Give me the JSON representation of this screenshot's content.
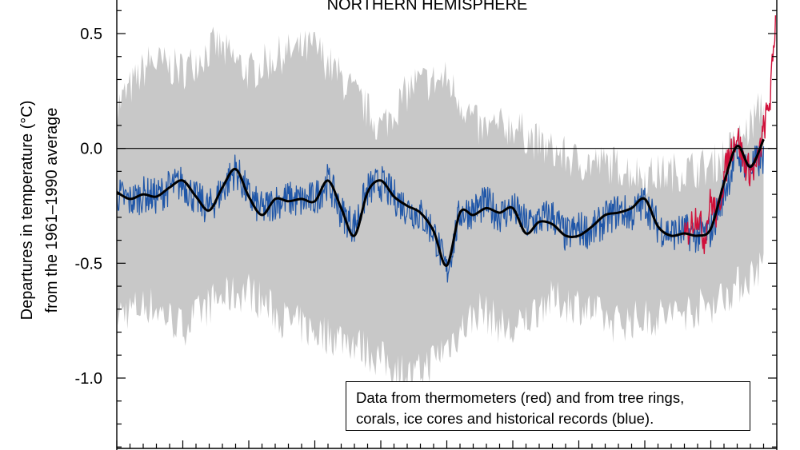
{
  "chart_data": {
    "type": "line",
    "title": "NORTHERN HEMISPHERE",
    "ylabel_line1": "Departures in temperature (°C)",
    "ylabel_line2": "from the 1961–1990 average",
    "xlabel": "",
    "ylim": [
      -1.3,
      0.65
    ],
    "xlim": [
      1000,
      2000
    ],
    "yticks": [
      0.5,
      0.0,
      -0.5,
      -1.0
    ],
    "ytick_labels": [
      "0.5",
      "0.0",
      "-0.5",
      "-1.0"
    ],
    "zero_line": true,
    "series": [
      {
        "role": "uncertainty_band",
        "color": "#c8c8c8",
        "x": [
          1000,
          1050,
          1100,
          1150,
          1200,
          1250,
          1300,
          1350,
          1400,
          1450,
          1500,
          1550,
          1600,
          1650,
          1700,
          1750,
          1800,
          1850,
          1900,
          1950,
          1980
        ],
        "upper": [
          0.18,
          0.38,
          0.34,
          0.45,
          0.33,
          0.41,
          0.44,
          0.27,
          0.09,
          0.28,
          0.3,
          0.08,
          0.1,
          0.0,
          -0.06,
          -0.07,
          -0.12,
          -0.1,
          -0.08,
          0.05,
          0.2
        ],
        "lower": [
          -0.72,
          -0.68,
          -0.78,
          -0.66,
          -0.62,
          -0.74,
          -0.8,
          -0.83,
          -0.92,
          -1.0,
          -0.86,
          -0.7,
          -0.81,
          -0.66,
          -0.68,
          -0.76,
          -0.74,
          -0.72,
          -0.68,
          -0.58,
          -0.5
        ]
      },
      {
        "role": "proxy_reconstruction",
        "color": "#1f56a8",
        "x": [
          1000,
          1020,
          1040,
          1060,
          1080,
          1100,
          1120,
          1140,
          1160,
          1180,
          1200,
          1220,
          1240,
          1260,
          1280,
          1300,
          1320,
          1340,
          1360,
          1380,
          1400,
          1420,
          1440,
          1460,
          1480,
          1500,
          1520,
          1540,
          1560,
          1580,
          1600,
          1620,
          1640,
          1660,
          1680,
          1700,
          1720,
          1740,
          1760,
          1780,
          1800,
          1820,
          1840,
          1860,
          1880,
          1900,
          1920,
          1940,
          1960,
          1980
        ],
        "y": [
          -0.2,
          -0.23,
          -0.2,
          -0.21,
          -0.17,
          -0.15,
          -0.22,
          -0.26,
          -0.18,
          -0.09,
          -0.21,
          -0.27,
          -0.23,
          -0.22,
          -0.23,
          -0.22,
          -0.14,
          -0.28,
          -0.34,
          -0.18,
          -0.15,
          -0.21,
          -0.26,
          -0.29,
          -0.36,
          -0.54,
          -0.28,
          -0.27,
          -0.24,
          -0.29,
          -0.26,
          -0.33,
          -0.31,
          -0.29,
          -0.38,
          -0.35,
          -0.36,
          -0.31,
          -0.27,
          -0.29,
          -0.23,
          -0.34,
          -0.37,
          -0.36,
          -0.38,
          -0.36,
          -0.19,
          -0.02,
          -0.08,
          -0.04
        ]
      },
      {
        "role": "thermometer",
        "color": "#d0103a",
        "x": [
          1860,
          1870,
          1880,
          1890,
          1900,
          1910,
          1920,
          1930,
          1940,
          1950,
          1960,
          1970,
          1980,
          1990,
          1998
        ],
        "y": [
          -0.4,
          -0.33,
          -0.28,
          -0.4,
          -0.22,
          -0.3,
          -0.12,
          -0.01,
          0.06,
          -0.06,
          -0.1,
          -0.08,
          0.08,
          0.22,
          0.56
        ]
      },
      {
        "role": "smoothed",
        "color": "#000000",
        "x": [
          1000,
          1020,
          1040,
          1060,
          1080,
          1100,
          1120,
          1140,
          1160,
          1180,
          1200,
          1220,
          1240,
          1260,
          1280,
          1300,
          1320,
          1340,
          1360,
          1380,
          1400,
          1420,
          1440,
          1460,
          1480,
          1500,
          1520,
          1540,
          1560,
          1580,
          1600,
          1620,
          1640,
          1660,
          1680,
          1700,
          1720,
          1740,
          1760,
          1780,
          1800,
          1820,
          1840,
          1860,
          1880,
          1900,
          1920,
          1940,
          1960,
          1980
        ],
        "y": [
          -0.19,
          -0.22,
          -0.2,
          -0.21,
          -0.17,
          -0.14,
          -0.21,
          -0.27,
          -0.17,
          -0.09,
          -0.21,
          -0.29,
          -0.22,
          -0.23,
          -0.22,
          -0.23,
          -0.14,
          -0.26,
          -0.38,
          -0.19,
          -0.14,
          -0.21,
          -0.25,
          -0.28,
          -0.36,
          -0.51,
          -0.28,
          -0.29,
          -0.26,
          -0.28,
          -0.26,
          -0.37,
          -0.32,
          -0.33,
          -0.38,
          -0.38,
          -0.34,
          -0.29,
          -0.28,
          -0.26,
          -0.22,
          -0.34,
          -0.38,
          -0.37,
          -0.38,
          -0.35,
          -0.15,
          0.01,
          -0.08,
          0.04
        ]
      }
    ],
    "annotation_line1": "Data from thermometers (red) and from tree rings,",
    "annotation_line2": "corals, ice cores and historical records (blue)."
  }
}
